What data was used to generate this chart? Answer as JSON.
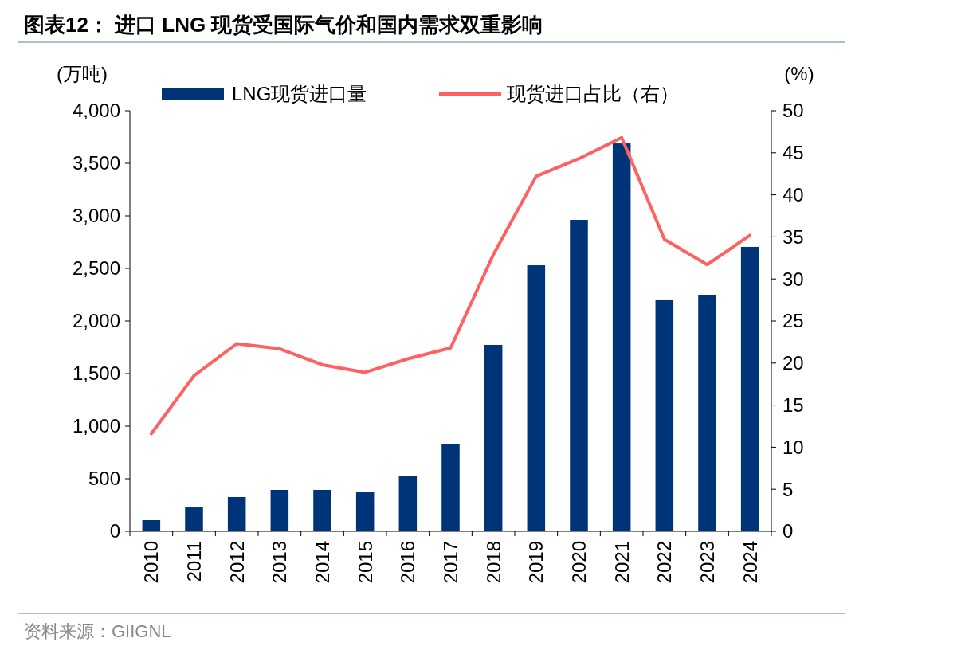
{
  "chart_data": {
    "type": "bar",
    "title": "图表12：  进口 LNG 现货受国际气价和国内需求双重影响",
    "ylabel": "(万吨)",
    "y2label": "(%)",
    "annotations": [
      "资料来源：GIIGNL"
    ],
    "categories": [
      "2010",
      "2011",
      "2012",
      "2013",
      "2014",
      "2015",
      "2016",
      "2017",
      "2018",
      "2019",
      "2020",
      "2021",
      "2022",
      "2023",
      "2024"
    ],
    "series": [
      {
        "name": "LNG现货进口量",
        "color": "#003478",
        "values": [
          106,
          227,
          326,
          394,
          394,
          371,
          530,
          826,
          1773,
          2530,
          2962,
          3689,
          2205,
          2250,
          2705
        ]
      },
      {
        "name": "现货进口占比（右）",
        "type": "line",
        "axis": "y2",
        "color": "#ff6161",
        "values": [
          11.6,
          18.5,
          22.3,
          21.7,
          19.8,
          18.9,
          20.5,
          21.8,
          32.9,
          42.2,
          44.3,
          46.8,
          34.7,
          31.7,
          35.2
        ]
      }
    ],
    "ylim": [
      0,
      4000
    ],
    "yticks": [
      {
        "value": 0,
        "label": "0"
      },
      {
        "value": 500,
        "label": "500"
      },
      {
        "value": 1000,
        "label": "1,000"
      },
      {
        "value": 1500,
        "label": "1,500"
      },
      {
        "value": 2000,
        "label": "2,000"
      },
      {
        "value": 2500,
        "label": "2,500"
      },
      {
        "value": 3000,
        "label": "3,000"
      },
      {
        "value": 3500,
        "label": "3,500"
      },
      {
        "value": 4000,
        "label": "4,000"
      }
    ],
    "y2lim": [
      0,
      50
    ],
    "y2ticks": [
      0,
      5,
      10,
      15,
      20,
      25,
      30,
      35,
      40,
      45,
      50
    ],
    "legend": "top",
    "grid": false,
    "marker": "none",
    "line_style": "solid"
  }
}
